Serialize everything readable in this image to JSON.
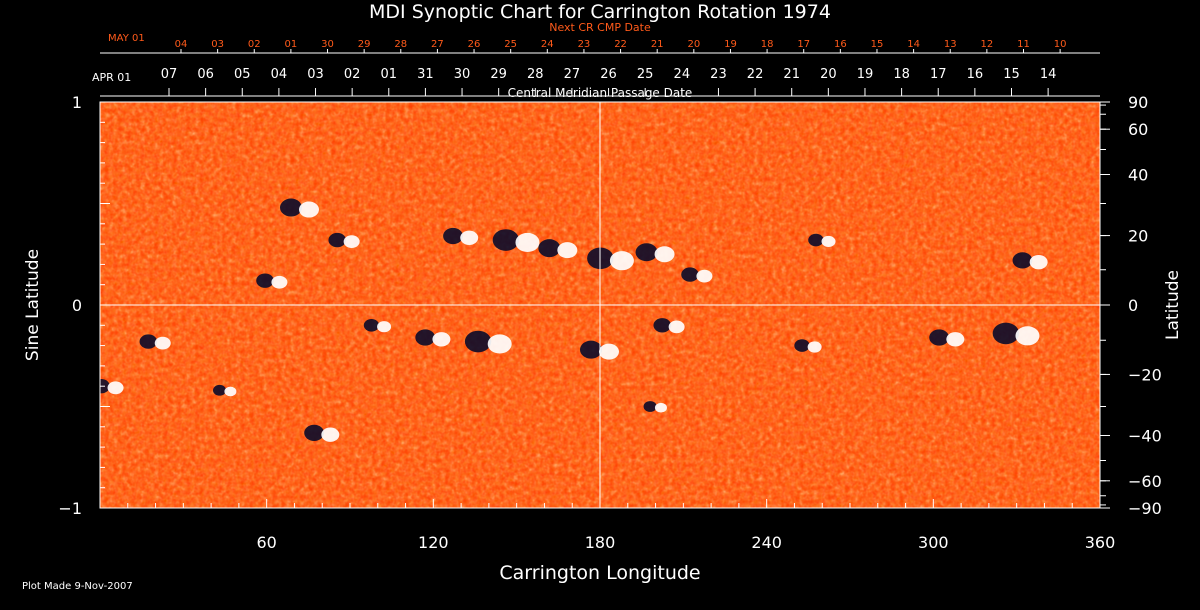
{
  "chart_data": {
    "type": "heatmap",
    "title": "MDI Synoptic Chart for Carrington Rotation 1974",
    "xlabel": "Carrington Longitude",
    "ylabel_left": "Sine Latitude",
    "ylabel_right": "Latitude",
    "xlim": [
      0,
      360
    ],
    "ylim": [
      -1,
      1
    ],
    "x_ticks": [
      60,
      120,
      180,
      240,
      300,
      360
    ],
    "left_ticks": [
      {
        "value": 1,
        "label": "1"
      },
      {
        "value": 0,
        "label": "0"
      },
      {
        "value": -1,
        "label": "−1"
      }
    ],
    "right_ticks": [
      {
        "value": 90,
        "label": "90"
      },
      {
        "value": 60,
        "label": "60"
      },
      {
        "value": 40,
        "label": "40"
      },
      {
        "value": 20,
        "label": "20"
      },
      {
        "value": 0,
        "label": "0"
      },
      {
        "value": -20,
        "label": "−20"
      },
      {
        "value": -40,
        "label": "−40"
      },
      {
        "value": -60,
        "label": "−60"
      },
      {
        "value": -90,
        "label": "−90"
      }
    ],
    "cmp_axis_label": "Central Meridian Passage Date",
    "cmp_first_label": "APR 01",
    "cmp_dates": [
      "07",
      "06",
      "05",
      "04",
      "03",
      "02",
      "01",
      "31",
      "30",
      "29",
      "28",
      "27",
      "26",
      "25",
      "24",
      "23",
      "22",
      "21",
      "20",
      "19",
      "18",
      "17",
      "16",
      "15",
      "14"
    ],
    "next_cmp_label": "Next CR CMP Date",
    "next_first_label": "MAY 01",
    "next_dates": [
      "04",
      "03",
      "02",
      "01",
      "30",
      "29",
      "28",
      "27",
      "26",
      "25",
      "24",
      "23",
      "22",
      "21",
      "20",
      "19",
      "18",
      "17",
      "16",
      "15",
      "14",
      "13",
      "12",
      "11",
      "10"
    ],
    "guides": {
      "longitude": 180,
      "sine_latitude": 0
    },
    "colormap": [
      "#0b0b2a",
      "#ff3a00",
      "#ffffff"
    ],
    "active_regions": [
      {
        "lon": 62,
        "sinlat": 0.12,
        "r": 8
      },
      {
        "lon": 72,
        "sinlat": 0.48,
        "r": 10
      },
      {
        "lon": 88,
        "sinlat": 0.32,
        "r": 8
      },
      {
        "lon": 130,
        "sinlat": 0.34,
        "r": 9
      },
      {
        "lon": 150,
        "sinlat": 0.32,
        "r": 12
      },
      {
        "lon": 165,
        "sinlat": 0.28,
        "r": 10
      },
      {
        "lon": 184,
        "sinlat": 0.23,
        "r": 12
      },
      {
        "lon": 200,
        "sinlat": 0.26,
        "r": 10
      },
      {
        "lon": 215,
        "sinlat": 0.15,
        "r": 8
      },
      {
        "lon": 260,
        "sinlat": 0.32,
        "r": 7
      },
      {
        "lon": 335,
        "sinlat": 0.22,
        "r": 9
      },
      {
        "lon": 20,
        "sinlat": -0.18,
        "r": 8
      },
      {
        "lon": 100,
        "sinlat": -0.1,
        "r": 7
      },
      {
        "lon": 120,
        "sinlat": -0.16,
        "r": 9
      },
      {
        "lon": 140,
        "sinlat": -0.18,
        "r": 12
      },
      {
        "lon": 180,
        "sinlat": -0.22,
        "r": 10
      },
      {
        "lon": 205,
        "sinlat": -0.1,
        "r": 8
      },
      {
        "lon": 255,
        "sinlat": -0.2,
        "r": 7
      },
      {
        "lon": 305,
        "sinlat": -0.16,
        "r": 9
      },
      {
        "lon": 330,
        "sinlat": -0.14,
        "r": 12
      },
      {
        "lon": 3,
        "sinlat": -0.4,
        "r": 8
      },
      {
        "lon": 80,
        "sinlat": -0.63,
        "r": 9
      },
      {
        "lon": 200,
        "sinlat": -0.5,
        "r": 6
      },
      {
        "lon": 45,
        "sinlat": -0.42,
        "r": 6
      }
    ]
  },
  "footer": {
    "plot_made": "Plot Made  9-Nov-2007"
  }
}
